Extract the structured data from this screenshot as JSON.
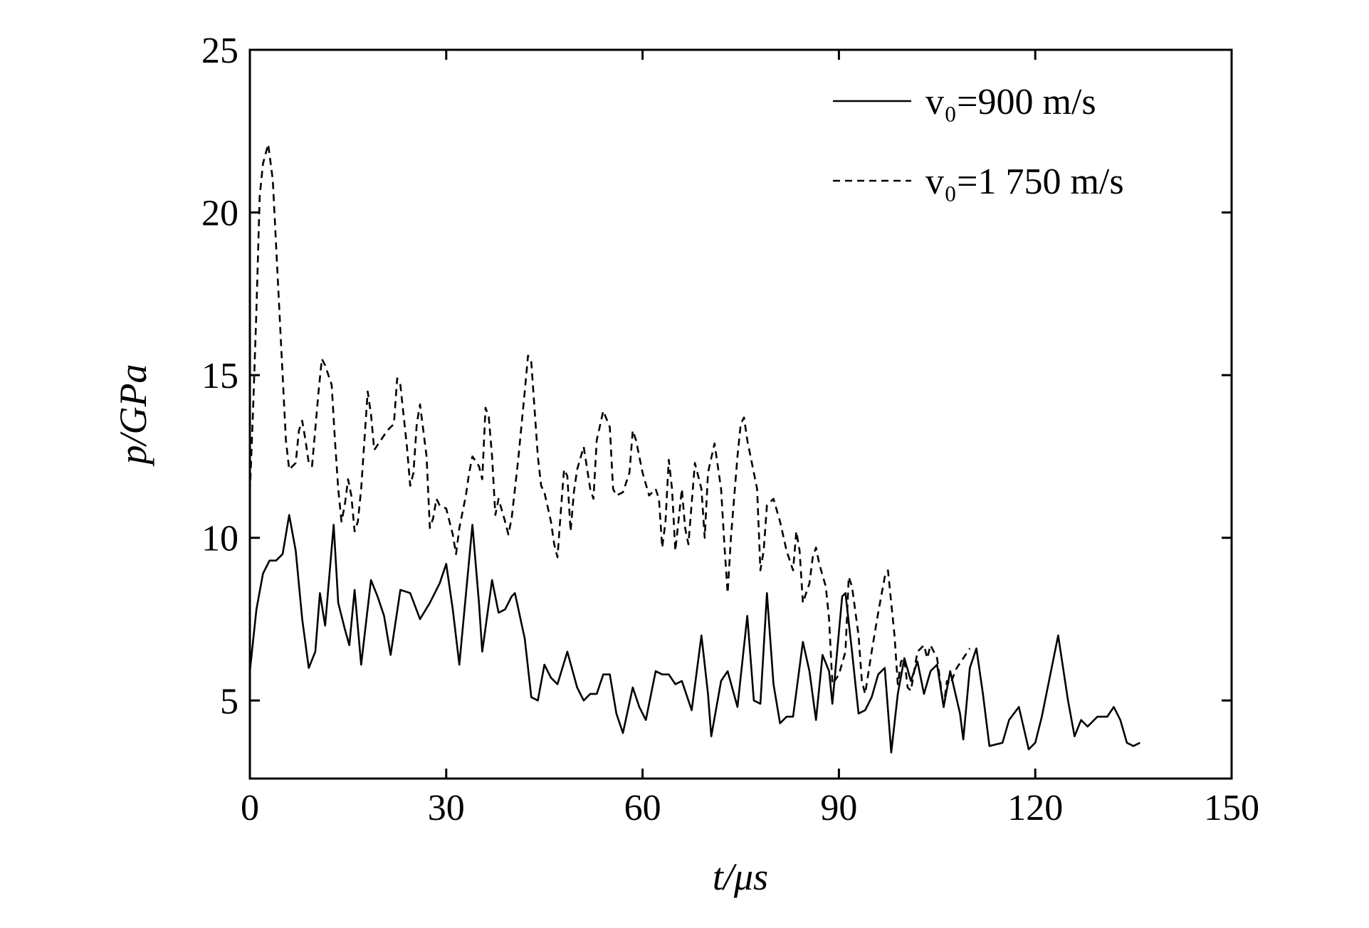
{
  "chart_data": {
    "type": "line",
    "xlabel": "t/μs",
    "ylabel": "p/GPa",
    "xlim": [
      0,
      150
    ],
    "xticks": [
      0,
      30,
      60,
      90,
      120,
      150
    ],
    "ylim": [
      2.6,
      25
    ],
    "yticks": [
      5,
      10,
      15,
      20,
      25
    ],
    "legend": "upper right",
    "series": [
      {
        "name": "v₀=900 m/s",
        "color": "#000000",
        "dash": "solid",
        "x": [
          0,
          1,
          2,
          3,
          4,
          5,
          6,
          7,
          8,
          9,
          10,
          10.7,
          11.5,
          12.8,
          13.5,
          14.5,
          15.2,
          16,
          17,
          18.5,
          19.5,
          20.5,
          21.5,
          23,
          24.5,
          26,
          27.5,
          29,
          30,
          31,
          32,
          34,
          35,
          35.5,
          37,
          38,
          39,
          40,
          40.5,
          42,
          43,
          44,
          45,
          46,
          47,
          48.5,
          50,
          51,
          52,
          53,
          54,
          55,
          56,
          57,
          58.5,
          59.5,
          60.5,
          62,
          63,
          64,
          65,
          66,
          67.5,
          69,
          70,
          70.5,
          72,
          73,
          74.5,
          76,
          77,
          78,
          79,
          80,
          81,
          82,
          83,
          84.5,
          85.5,
          86.5,
          87.5,
          88.5,
          89,
          90.5,
          91,
          92,
          93,
          94,
          95,
          96,
          97,
          98,
          99,
          100,
          101,
          102,
          103,
          104,
          105,
          106,
          107,
          108.5,
          109,
          110,
          111,
          112,
          113,
          115,
          116,
          117.5,
          119,
          120,
          121,
          123.5,
          125,
          126,
          127,
          128,
          129.5,
          131,
          132,
          133,
          134,
          135,
          136
        ],
        "values": [
          5.9,
          7.8,
          8.9,
          9.3,
          9.3,
          9.5,
          10.7,
          9.6,
          7.5,
          6.0,
          6.5,
          8.3,
          7.3,
          10.4,
          8.0,
          7.2,
          6.7,
          8.4,
          6.1,
          8.7,
          8.2,
          7.6,
          6.4,
          8.4,
          8.3,
          7.5,
          8.0,
          8.6,
          9.2,
          7.8,
          6.1,
          10.4,
          8.0,
          6.5,
          8.7,
          7.7,
          7.8,
          8.2,
          8.3,
          6.9,
          5.1,
          5.0,
          6.1,
          5.7,
          5.5,
          6.5,
          5.4,
          5.0,
          5.2,
          5.2,
          5.8,
          5.8,
          4.6,
          4.0,
          5.4,
          4.8,
          4.4,
          5.9,
          5.8,
          5.8,
          5.5,
          5.6,
          4.7,
          7.0,
          5.2,
          3.9,
          5.6,
          5.9,
          4.8,
          7.6,
          5.0,
          4.9,
          8.3,
          5.5,
          4.3,
          4.5,
          4.5,
          6.8,
          5.9,
          4.4,
          6.4,
          5.9,
          4.9,
          8.2,
          8.3,
          6.5,
          4.6,
          4.7,
          5.1,
          5.8,
          6.0,
          3.4,
          5.2,
          6.3,
          5.6,
          6.2,
          5.2,
          5.9,
          6.1,
          4.8,
          5.9,
          4.6,
          3.8,
          6.0,
          6.6,
          5.2,
          3.6,
          3.7,
          4.4,
          4.8,
          3.5,
          3.7,
          4.5,
          7.0,
          5.0,
          3.9,
          4.4,
          4.2,
          4.5,
          4.5,
          4.8,
          4.4,
          3.7,
          3.6,
          3.7
        ]
      },
      {
        "name": "v₀=1 750 m/s",
        "color": "#000000",
        "dash": "dashed",
        "x": [
          0,
          0.5,
          1,
          1.5,
          2,
          2.8,
          3.5,
          4,
          5,
          5.5,
          6,
          7,
          7.5,
          8,
          8.5,
          9,
          9.5,
          10.5,
          11,
          11.5,
          12.5,
          13,
          13.5,
          14,
          14.5,
          15,
          15.5,
          16,
          16.5,
          17,
          17.5,
          18,
          18.5,
          19,
          20,
          21,
          22,
          22.5,
          23,
          24,
          24.5,
          25,
          25.5,
          26,
          27,
          27.5,
          28,
          28.5,
          29,
          30,
          31,
          31.5,
          32,
          33,
          33.5,
          34,
          35,
          35.5,
          36,
          36.5,
          37,
          37.5,
          38,
          39,
          39.5,
          40,
          41,
          42,
          42.5,
          43,
          44,
          44.5,
          45,
          46,
          46.5,
          47,
          47.5,
          48,
          48.5,
          49,
          49.5,
          50,
          51,
          52,
          52.5,
          53,
          54,
          55,
          55.5,
          56,
          57,
          58,
          58.5,
          59,
          60,
          61,
          62,
          62.5,
          63,
          63.5,
          64,
          64.5,
          65,
          66,
          66.5,
          67,
          68,
          69,
          69.5,
          70,
          71,
          72,
          72.5,
          73,
          73.5,
          74.5,
          75,
          75.5,
          76,
          77,
          77.5,
          78,
          78.5,
          79,
          80,
          81,
          82,
          83,
          83.5,
          84,
          84.5,
          85.5,
          86,
          86.5,
          87,
          88,
          88.5,
          89,
          90,
          91,
          91.5,
          92,
          93,
          93.5,
          94,
          95,
          96,
          97,
          97.5,
          98.5,
          99,
          99.5,
          100,
          100.5,
          101,
          102,
          103,
          103.5,
          104,
          105,
          106,
          106.5,
          107,
          108,
          109,
          110
        ],
        "values": [
          11.4,
          14,
          17,
          20.5,
          21.5,
          22.1,
          21,
          19,
          15,
          13,
          12.1,
          12.3,
          13.3,
          13.6,
          13,
          12.3,
          12.2,
          14.5,
          15.5,
          15.3,
          14.7,
          13,
          11.5,
          10.5,
          11,
          11.8,
          11.3,
          10.2,
          10.5,
          11.5,
          13,
          14.5,
          13.8,
          12.7,
          13,
          13.3,
          13.5,
          14.9,
          14.7,
          12.8,
          11.6,
          12,
          13.5,
          14.1,
          12.5,
          10.3,
          10.6,
          11.2,
          11.0,
          10.9,
          10.1,
          9.5,
          10.3,
          11.3,
          12.0,
          12.5,
          12.2,
          11.8,
          14.0,
          13.7,
          12.5,
          10.7,
          11.2,
          10.5,
          10.1,
          10.6,
          12.4,
          14.5,
          15.6,
          15.4,
          12.5,
          11.6,
          11.4,
          10.5,
          9.8,
          9.4,
          10.8,
          12.1,
          11.9,
          10.2,
          11.4,
          12.1,
          12.8,
          11.5,
          11.2,
          13.0,
          13.9,
          13.4,
          11.5,
          11.3,
          11.4,
          12.0,
          13.3,
          13.0,
          12.0,
          11.3,
          11.5,
          11.2,
          9.7,
          10.5,
          12.4,
          11.5,
          9.6,
          11.5,
          10.3,
          9.8,
          12.3,
          11.5,
          10.0,
          12.0,
          12.9,
          11.5,
          9.8,
          8.3,
          10.0,
          12.5,
          13.5,
          13.7,
          13.0,
          12.0,
          11.5,
          9.0,
          9.6,
          11.0,
          11.2,
          10.5,
          9.6,
          9.0,
          10.2,
          9.6,
          8.0,
          8.6,
          9.4,
          9.7,
          9.2,
          8.5,
          7.5,
          5.5,
          5.8,
          6.5,
          8.8,
          8.5,
          7.0,
          5.6,
          5.2,
          6.5,
          7.7,
          8.8,
          9.0,
          7.0,
          5.5,
          6.2,
          6.3,
          5.4,
          5.3,
          6.5,
          6.7,
          6.3,
          6.7,
          6.3,
          4.8,
          5.6,
          5.5,
          6.0,
          6.3,
          6.6
        ]
      }
    ]
  }
}
